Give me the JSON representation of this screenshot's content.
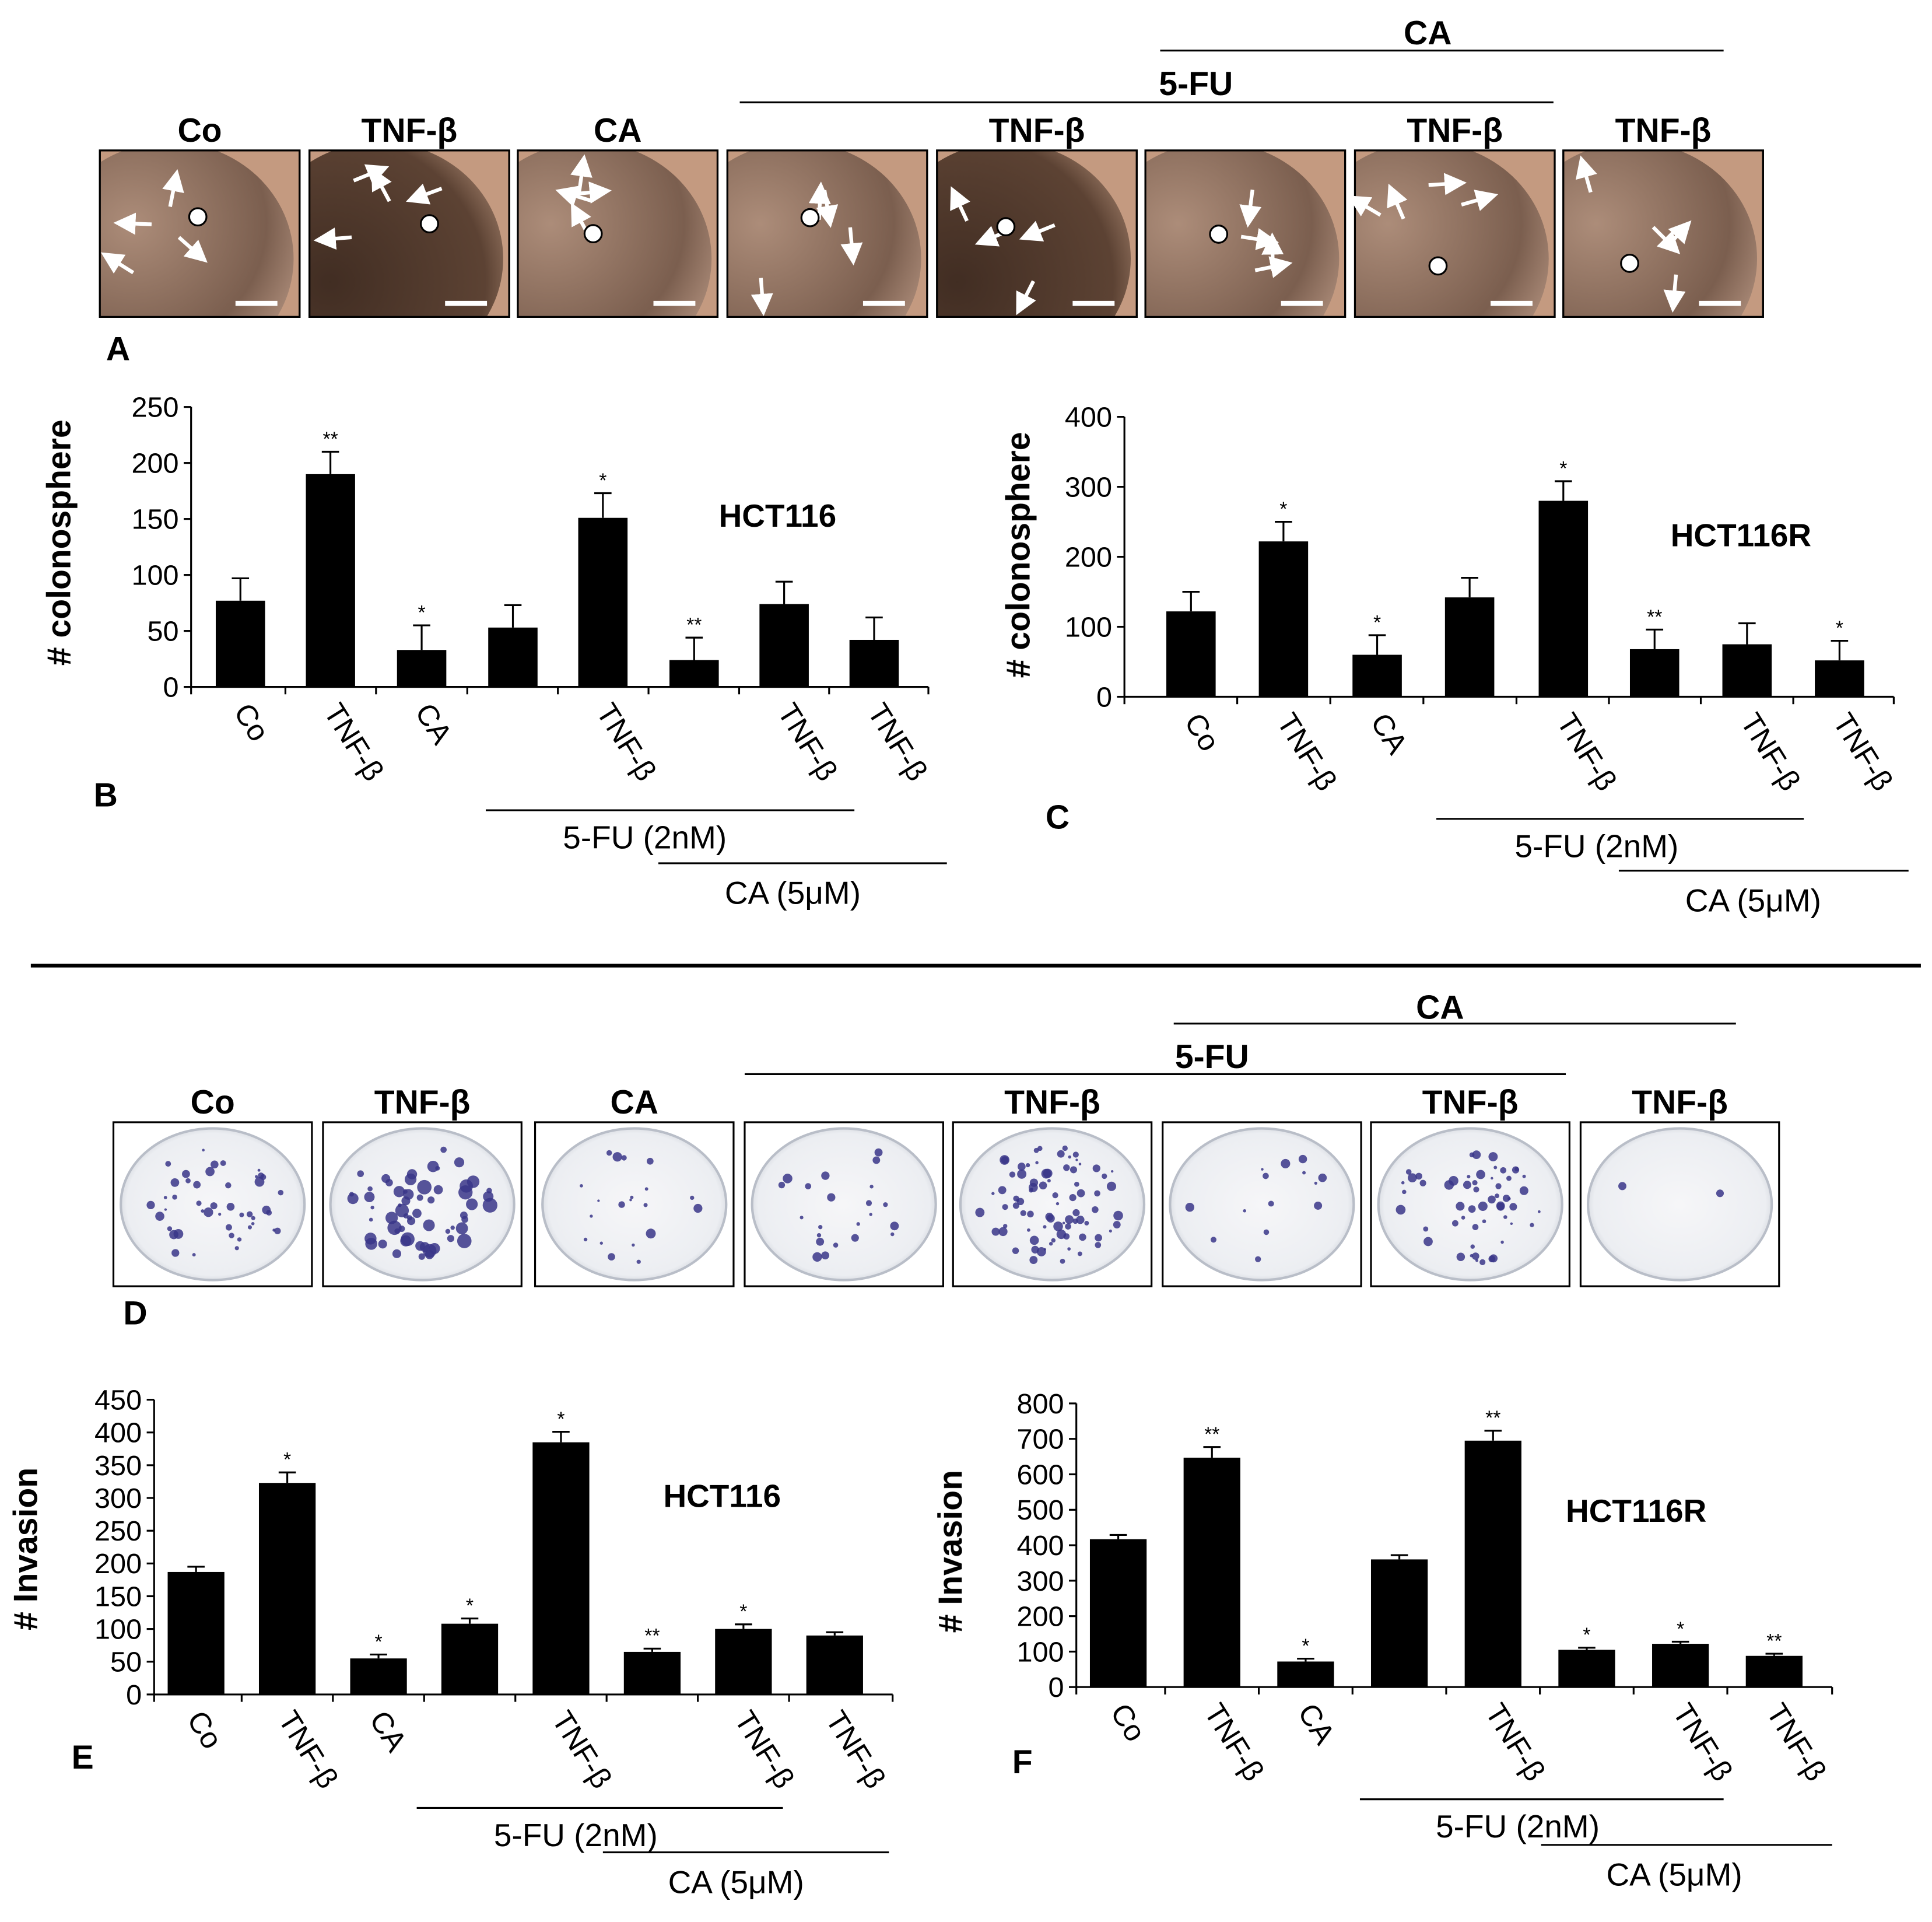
{
  "panel_labels": {
    "A": "A",
    "B": "B",
    "C": "C",
    "D": "D",
    "E": "E",
    "F": "F"
  },
  "photo_row_A": {
    "group_labels": {
      "ca": "CA",
      "fu": "5-FU"
    },
    "column_labels": [
      "Co",
      "TNF-β",
      "CA",
      "",
      "TNF-β",
      "",
      "TNF-β",
      "TNF-β"
    ],
    "image_color": "#c49a80"
  },
  "photo_row_D": {
    "group_labels": {
      "ca": "CA",
      "fu": "5-FU"
    },
    "column_labels": [
      "Co",
      "TNF-β",
      "CA",
      "",
      "TNF-β",
      "",
      "TNF-β",
      "TNF-β"
    ],
    "colony_color": "#3a3688"
  },
  "group_underlines": {
    "fu": "5-FU (2nM)",
    "ca": "CA (5μM)"
  },
  "chart_data": [
    {
      "id": "B",
      "type": "bar",
      "categories": [
        "Co",
        "TNF-β",
        "CA",
        "",
        "TNF-β",
        "",
        "TNF-β",
        "TNF-β"
      ],
      "values": [
        77,
        190,
        33,
        53,
        151,
        24,
        74,
        42
      ],
      "errors": [
        20,
        20,
        22,
        20,
        22,
        20,
        20,
        20
      ],
      "significance": [
        "",
        "**",
        "*",
        "",
        "*",
        "**",
        "",
        ""
      ],
      "ylabel": "# colonosphere",
      "cell_line": "HCT116",
      "ylim": [
        0,
        250
      ],
      "yticks": [
        0,
        50,
        100,
        150,
        200,
        250
      ],
      "grid": false
    },
    {
      "id": "C",
      "type": "bar",
      "categories": [
        "Co",
        "TNF-β",
        "CA",
        "",
        "TNF-β",
        "",
        "TNF-β",
        "TNF-β"
      ],
      "values": [
        122,
        222,
        60,
        142,
        280,
        68,
        75,
        52
      ],
      "errors": [
        28,
        28,
        28,
        28,
        28,
        28,
        30,
        28
      ],
      "significance": [
        "",
        "*",
        "*",
        "",
        "*",
        "**",
        "",
        "*"
      ],
      "ylabel": "# colonosphere",
      "cell_line": "HCT116R",
      "ylim": [
        0,
        400
      ],
      "yticks": [
        0,
        100,
        200,
        300,
        400
      ],
      "grid": false
    },
    {
      "id": "E",
      "type": "bar",
      "categories": [
        "Co",
        "TNF-β",
        "CA",
        "",
        "TNF-β",
        "",
        "TNF-β",
        "TNF-β"
      ],
      "values": [
        187,
        323,
        55,
        108,
        385,
        65,
        100,
        90
      ],
      "errors": [
        8,
        16,
        6,
        8,
        16,
        5,
        7,
        5
      ],
      "significance": [
        "",
        "*",
        "*",
        "*",
        "*",
        "**",
        "*",
        ""
      ],
      "ylabel": "# Invasion",
      "cell_line": "HCT116",
      "ylim": [
        0,
        450
      ],
      "yticks": [
        0,
        50,
        100,
        150,
        200,
        250,
        300,
        350,
        400,
        450
      ],
      "grid": false
    },
    {
      "id": "F",
      "type": "bar",
      "categories": [
        "Co",
        "TNF-β",
        "CA",
        "",
        "TNF-β",
        "",
        "TNF-β",
        "TNF-β"
      ],
      "values": [
        417,
        647,
        72,
        360,
        695,
        105,
        122,
        88
      ],
      "errors": [
        12,
        30,
        8,
        12,
        28,
        6,
        6,
        6
      ],
      "significance": [
        "",
        "**",
        "*",
        "",
        "**",
        "*",
        "*",
        "**"
      ],
      "ylabel": "# Invasion",
      "cell_line": "HCT116R",
      "ylim": [
        0,
        800
      ],
      "yticks": [
        0,
        100,
        200,
        300,
        400,
        500,
        600,
        700,
        800
      ],
      "grid": false
    }
  ]
}
